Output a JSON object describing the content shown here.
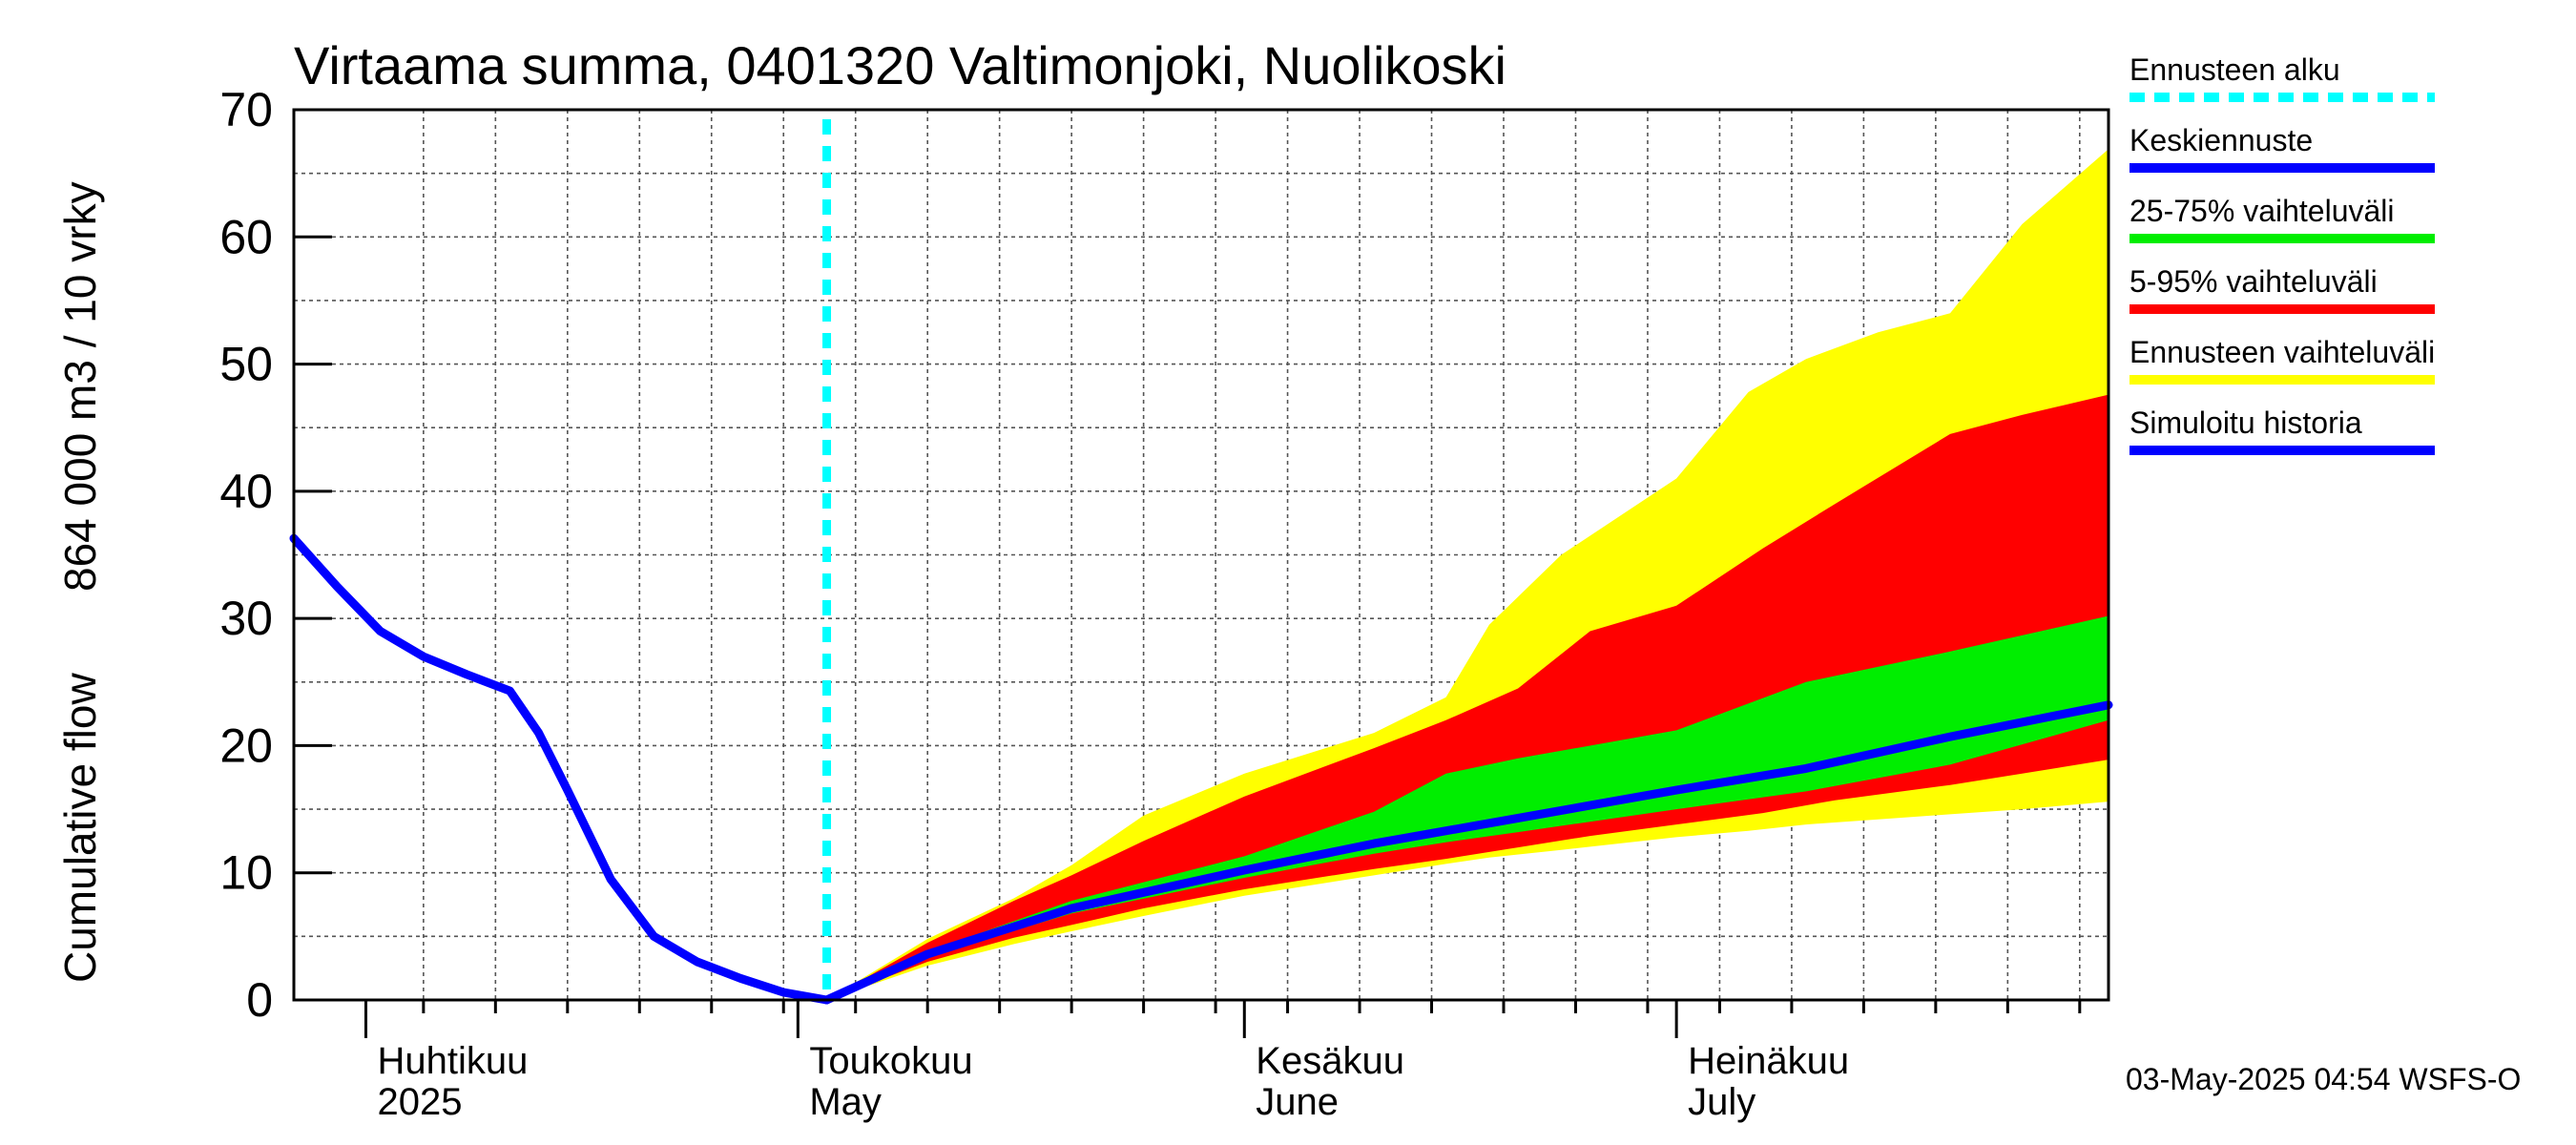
{
  "chart_data": {
    "type": "area",
    "title": "Virtaama summa, 0401320 Valtimonjoki, Nuolikoski",
    "ylabel_left": "Cumulative flow",
    "ylabel_right": "864 000 m3 / 10 vrky",
    "ylim": [
      0,
      70
    ],
    "yticks": [
      0,
      10,
      20,
      30,
      40,
      50,
      60,
      70
    ],
    "x_start": "2025-03-27",
    "x_end": "2025-07-31",
    "grid": true,
    "legend_placement": "right",
    "forecast_start": "2025-05-03",
    "months": [
      {
        "date": "2025-04-01",
        "fi": "Huhtikuu",
        "en": "2025"
      },
      {
        "date": "2025-05-01",
        "fi": "Toukokuu",
        "en": "May"
      },
      {
        "date": "2025-06-01",
        "fi": "Kesäkuu",
        "en": "June"
      },
      {
        "date": "2025-07-01",
        "fi": "Heinäkuu",
        "en": "July"
      }
    ],
    "legend": [
      {
        "label": "Ennusteen alku",
        "color": "#00ffff",
        "style": "dashed"
      },
      {
        "label": "Keskiennuste",
        "color": "#0000ff",
        "style": "solid"
      },
      {
        "label": "25-75% vaihteluväli",
        "color": "#00ee00",
        "style": "solid"
      },
      {
        "label": "5-95% vaihteluväli",
        "color": "#ff0000",
        "style": "solid"
      },
      {
        "label": "Ennusteen vaihteluväli",
        "color": "#ffff00",
        "style": "solid"
      },
      {
        "label": "Simuloitu historia",
        "color": "#0000ff",
        "style": "solid"
      }
    ],
    "series": [
      {
        "name": "Simuloitu historia",
        "color": "#0000ff",
        "x": [
          "2025-03-27",
          "2025-03-30",
          "2025-04-02",
          "2025-04-05",
          "2025-04-08",
          "2025-04-11",
          "2025-04-13",
          "2025-04-15",
          "2025-04-18",
          "2025-04-21",
          "2025-04-24",
          "2025-04-27",
          "2025-04-30",
          "2025-05-03"
        ],
        "y": [
          36.3,
          32.5,
          29.0,
          27.0,
          25.6,
          24.3,
          21.0,
          16.5,
          9.5,
          5.0,
          3.0,
          1.7,
          0.6,
          0.0
        ]
      },
      {
        "name": "Keskiennuste",
        "color": "#0000ff",
        "x": [
          "2025-05-03",
          "2025-05-10",
          "2025-05-20",
          "2025-06-01",
          "2025-06-10",
          "2025-06-20",
          "2025-07-01",
          "2025-07-10",
          "2025-07-20",
          "2025-07-31"
        ],
        "y": [
          0.0,
          3.6,
          7.2,
          10.2,
          12.3,
          14.3,
          16.5,
          18.2,
          20.7,
          23.2
        ]
      },
      {
        "name": "Ennusteen vaihteluväli",
        "color": "#ffff00",
        "x": [
          "2025-05-03",
          "2025-05-10",
          "2025-05-16",
          "2025-05-20",
          "2025-05-25",
          "2025-06-01",
          "2025-06-10",
          "2025-06-15",
          "2025-06-18",
          "2025-06-23",
          "2025-07-01",
          "2025-07-06",
          "2025-07-10",
          "2025-07-15",
          "2025-07-20",
          "2025-07-25",
          "2025-07-31"
        ],
        "low": [
          0.0,
          2.7,
          4.4,
          5.4,
          6.6,
          8.2,
          9.8,
          10.7,
          11.2,
          11.8,
          12.8,
          13.3,
          13.8,
          14.2,
          14.6,
          15.0,
          15.6
        ],
        "high": [
          0.0,
          4.8,
          8.0,
          10.6,
          14.5,
          17.8,
          21.0,
          23.8,
          29.5,
          35.0,
          41.0,
          47.8,
          50.4,
          52.5,
          54.0,
          61.0,
          66.9
        ]
      },
      {
        "name": "5-95% vaihteluväli",
        "color": "#ff0000",
        "x": [
          "2025-05-03",
          "2025-05-10",
          "2025-05-16",
          "2025-05-20",
          "2025-05-25",
          "2025-06-01",
          "2025-06-10",
          "2025-06-15",
          "2025-06-20",
          "2025-06-25",
          "2025-07-01",
          "2025-07-07",
          "2025-07-12",
          "2025-07-20",
          "2025-07-25",
          "2025-07-31"
        ],
        "low": [
          0.0,
          3.0,
          4.9,
          5.9,
          7.2,
          8.7,
          10.3,
          11.1,
          12.0,
          12.9,
          13.8,
          14.7,
          15.7,
          16.9,
          17.8,
          18.9
        ],
        "high": [
          0.0,
          4.5,
          7.8,
          9.8,
          12.5,
          16.0,
          19.8,
          22.0,
          24.5,
          29.0,
          31.0,
          35.5,
          39.0,
          44.5,
          46.0,
          47.6
        ]
      },
      {
        "name": "25-75% vaihteluväli",
        "color": "#00ee00",
        "x": [
          "2025-05-03",
          "2025-05-10",
          "2025-05-20",
          "2025-06-01",
          "2025-06-10",
          "2025-06-15",
          "2025-06-20",
          "2025-07-01",
          "2025-07-10",
          "2025-07-20",
          "2025-07-31"
        ],
        "low": [
          0.0,
          3.4,
          6.8,
          9.6,
          11.5,
          12.4,
          13.2,
          15.0,
          16.4,
          18.5,
          22.0
        ],
        "high": [
          0.0,
          3.8,
          7.8,
          11.3,
          14.8,
          17.8,
          19.0,
          21.2,
          25.0,
          27.4,
          30.2
        ]
      }
    ]
  },
  "footer": "03-May-2025 04:54 WSFS-O"
}
